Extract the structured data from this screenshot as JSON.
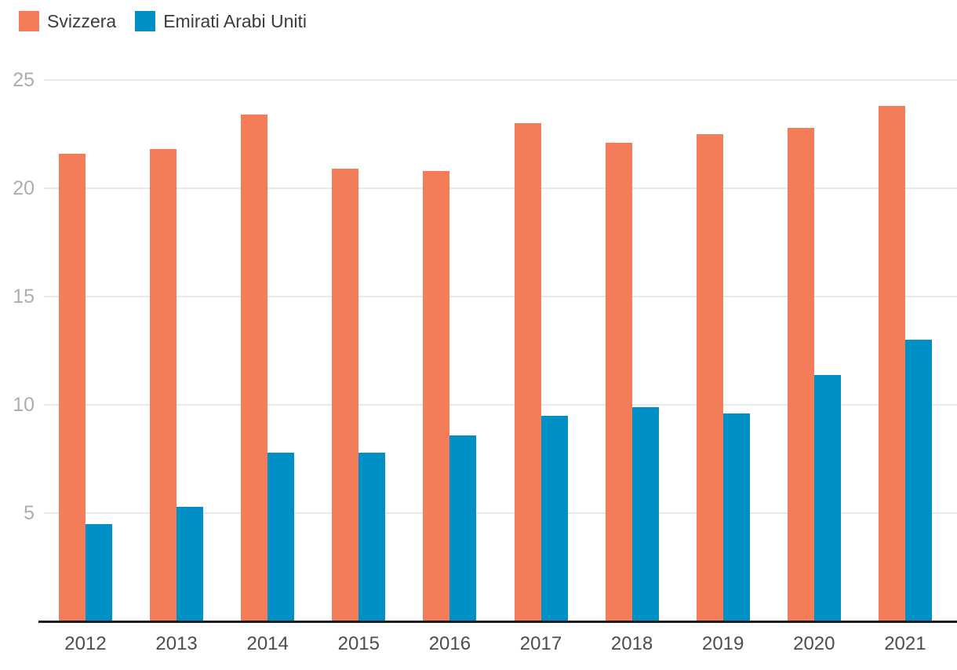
{
  "chart_data": {
    "type": "bar",
    "title": "",
    "xlabel": "",
    "ylabel": "",
    "categories": [
      "2012",
      "2013",
      "2014",
      "2015",
      "2016",
      "2017",
      "2018",
      "2019",
      "2020",
      "2021"
    ],
    "series": [
      {
        "name": "Svizzera",
        "color": "#F37D58",
        "values": [
          21.6,
          21.8,
          23.4,
          20.9,
          20.8,
          23.0,
          22.1,
          22.5,
          22.8,
          23.8
        ]
      },
      {
        "name": "Emirati Arabi Uniti",
        "color": "#0090C5",
        "values": [
          4.5,
          5.3,
          7.8,
          7.8,
          8.6,
          9.5,
          9.9,
          9.6,
          11.4,
          13.0
        ]
      }
    ],
    "yticks": [
      5,
      10,
      15,
      20,
      25
    ],
    "ylim": [
      0,
      25
    ],
    "grid": true,
    "legend_position": "top-left"
  },
  "colors": {
    "background": "#FFFFFF",
    "gridline": "#E9E9E9",
    "axis": "#1C1C1C",
    "y_tick_label": "#ADADAD",
    "x_tick_label": "#4D4D4D",
    "legend_text": "#3C3C3C"
  }
}
